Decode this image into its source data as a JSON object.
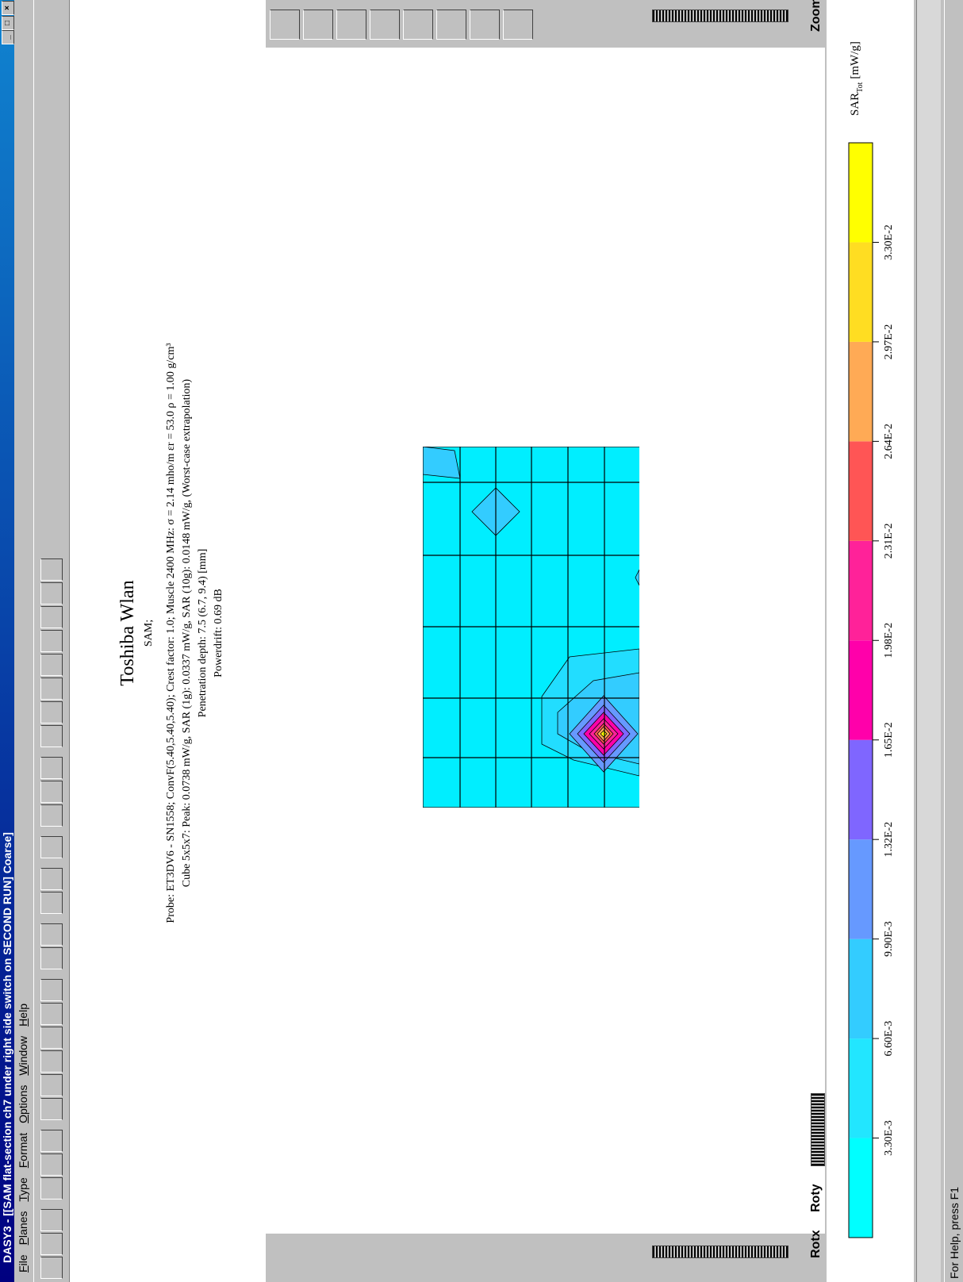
{
  "window": {
    "title": "DASY3 - [[SAM flat-section ch7 under right side switch on SECOND RUN]  Coarse]",
    "menu": [
      "File",
      "Planes",
      "Type",
      "Format",
      "Options",
      "Window",
      "Help"
    ],
    "status": "For Help, press F1"
  },
  "document": {
    "title": "Toshiba Wlan",
    "lines": [
      "SAM;",
      "Probe: ET3DV6 - SN1558; ConvF(5.40,5.40,5.40); Crest factor: 1.0; Muscle 2400 MHz: σ = 2.14 mho/m εr = 53.0 ρ = 1.00 g/cm³",
      "Cube 5x5x7: Peak: 0.0738 mW/g, SAR (1g): 0.0337 mW/g, SAR (10g): 0.0148 mW/g, (Worst-case extrapolation)",
      "Penetration depth: 7.5 (6.7, 9.4) [mm]",
      "Powerdrift: 0.69 dB"
    ]
  },
  "controls": {
    "zoom": "Zoom",
    "rotx": "Rotx",
    "roty": "Roty"
  },
  "legend": {
    "label": "SAR",
    "label_sub": "Tot",
    "unit": "[mW/g]",
    "ticks": [
      "3.30E-3",
      "6.60E-3",
      "9.90E-3",
      "1.32E-2",
      "1.65E-2",
      "1.98E-2",
      "2.31E-2",
      "2.64E-2",
      "2.97E-2",
      "3.30E-2"
    ],
    "colors": [
      "#00ffff",
      "#22e6ff",
      "#33ccff",
      "#6699ff",
      "#7f66ff",
      "#ff00aa",
      "#ff2299",
      "#ff5555",
      "#ffaa55",
      "#ffdd22",
      "#ffff00"
    ]
  }
}
